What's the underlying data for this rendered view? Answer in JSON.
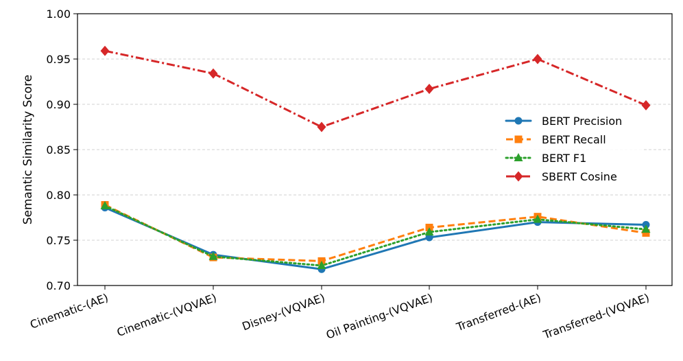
{
  "chart_data": {
    "type": "line",
    "title": "",
    "xlabel": "",
    "ylabel": "Semantic Similarity Score",
    "categories": [
      "Cinematic-(AE)",
      "Cinematic-(VQVAE)",
      "Disney-(VQVAE)",
      "Oil Painting-(VQVAE)",
      "Transferred-(AE)",
      "Transferred-(VQVAE)"
    ],
    "ylim": [
      0.7,
      1.0
    ],
    "yticks": [
      "0.70",
      "0.75",
      "0.80",
      "0.85",
      "0.90",
      "0.95",
      "1.00"
    ],
    "grid": "horizontal dashed",
    "legend_position": "right",
    "series": [
      {
        "name": "BERT Precision",
        "values": [
          0.786,
          0.734,
          0.718,
          0.753,
          0.77,
          0.767
        ],
        "color": "#1f77b4",
        "marker": "circle",
        "linestyle": "solid"
      },
      {
        "name": "BERT Recall",
        "values": [
          0.789,
          0.731,
          0.727,
          0.764,
          0.776,
          0.758
        ],
        "color": "#ff7f0e",
        "marker": "square",
        "linestyle": "dashed"
      },
      {
        "name": "BERT F1",
        "values": [
          0.788,
          0.732,
          0.722,
          0.759,
          0.773,
          0.762
        ],
        "color": "#2ca02c",
        "marker": "triangle",
        "linestyle": "dotted"
      },
      {
        "name": "SBERT Cosine",
        "values": [
          0.959,
          0.934,
          0.875,
          0.917,
          0.95,
          0.899
        ],
        "color": "#d62728",
        "marker": "diamond",
        "linestyle": "dashdot"
      }
    ]
  }
}
